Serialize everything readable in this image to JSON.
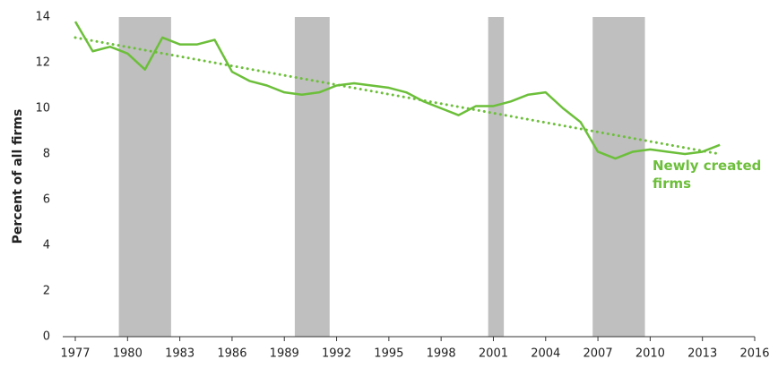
{
  "chart_data": {
    "type": "line",
    "y_label": "Percent of all firms",
    "x": [
      1977,
      1978,
      1979,
      1980,
      1981,
      1982,
      1983,
      1984,
      1985,
      1986,
      1987,
      1988,
      1989,
      1990,
      1991,
      1992,
      1993,
      1994,
      1995,
      1996,
      1997,
      1998,
      1999,
      2000,
      2001,
      2002,
      2003,
      2004,
      2005,
      2006,
      2007,
      2008,
      2009,
      2010,
      2011,
      2012,
      2013,
      2014
    ],
    "series": [
      {
        "name": "Newly created firms",
        "color": "#6cbf3a",
        "values": [
          13.8,
          12.5,
          12.7,
          12.4,
          11.7,
          13.1,
          12.8,
          12.8,
          13.0,
          11.6,
          11.2,
          11.0,
          10.7,
          10.6,
          10.7,
          11.0,
          11.1,
          11.0,
          10.9,
          10.7,
          10.3,
          10.0,
          9.7,
          10.1,
          10.1,
          10.3,
          10.6,
          10.7,
          10.0,
          9.4,
          8.1,
          7.8,
          8.1,
          8.2,
          8.1,
          8.0,
          8.1,
          8.4
        ]
      }
    ],
    "trend": {
      "x": [
        1977,
        2014
      ],
      "values": [
        13.1,
        8.0
      ],
      "color": "#6cbf3a"
    },
    "shaded_ranges": {
      "color": "#bfbfbf",
      "ranges": [
        [
          1979.5,
          1982.5
        ],
        [
          1989.6,
          1991.6
        ],
        [
          2000.7,
          2001.6
        ],
        [
          2006.7,
          2009.7
        ]
      ]
    },
    "xlim": [
      1977,
      2016
    ],
    "xticks": [
      1977,
      1980,
      1983,
      1986,
      1989,
      1992,
      1995,
      1998,
      2001,
      2004,
      2007,
      2010,
      2013,
      2016
    ],
    "ylim": [
      0,
      14
    ],
    "yticks": [
      0,
      2,
      4,
      6,
      8,
      10,
      12,
      14
    ],
    "grid": false
  }
}
